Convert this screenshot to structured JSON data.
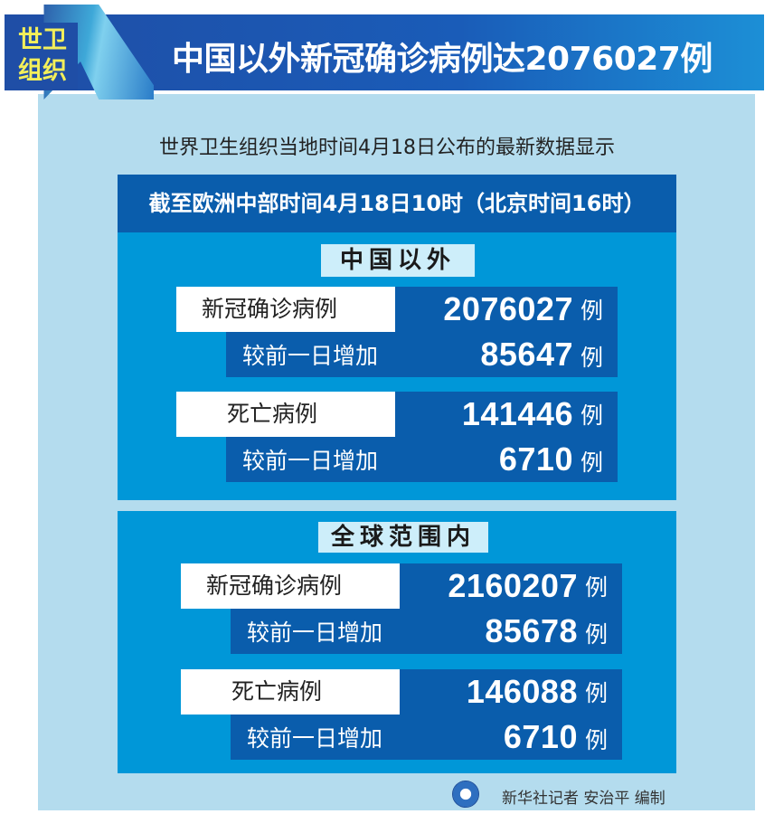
{
  "header": {
    "tag_line1": "世卫",
    "tag_line2": "组织",
    "title": "中国以外新冠确诊病例达2076027例"
  },
  "subtitle": "世界卫生组织当地时间4月18日公布的最新数据显示",
  "banner": "截至欧洲中部时间4月18日10时（北京时间16时）",
  "sections": [
    {
      "label": "中国以外",
      "rows": [
        {
          "label": "新冠确诊病例",
          "value": "2076027",
          "unit": "例"
        },
        {
          "label": "较前一日增加",
          "value": "85647",
          "unit": "例"
        },
        {
          "label": "死亡病例",
          "value": "141446",
          "unit": "例"
        },
        {
          "label": "较前一日增加",
          "value": "6710",
          "unit": "例"
        }
      ]
    },
    {
      "label": "全球范围内",
      "rows": [
        {
          "label": "新冠确诊病例",
          "value": "2160207",
          "unit": "例"
        },
        {
          "label": "较前一日增加",
          "value": "85678",
          "unit": "例"
        },
        {
          "label": "死亡病例",
          "value": "146088",
          "unit": "例"
        },
        {
          "label": "较前一日增加",
          "value": "6710",
          "unit": "例"
        }
      ]
    }
  ],
  "footer": {
    "credit": "新华社记者 安治平 编制",
    "logo": "xinhua-logo"
  },
  "colors": {
    "panel": "#b4dcee",
    "section": "#0097d8",
    "dark": "#0a5dac",
    "tag": "#f3ef5a"
  }
}
